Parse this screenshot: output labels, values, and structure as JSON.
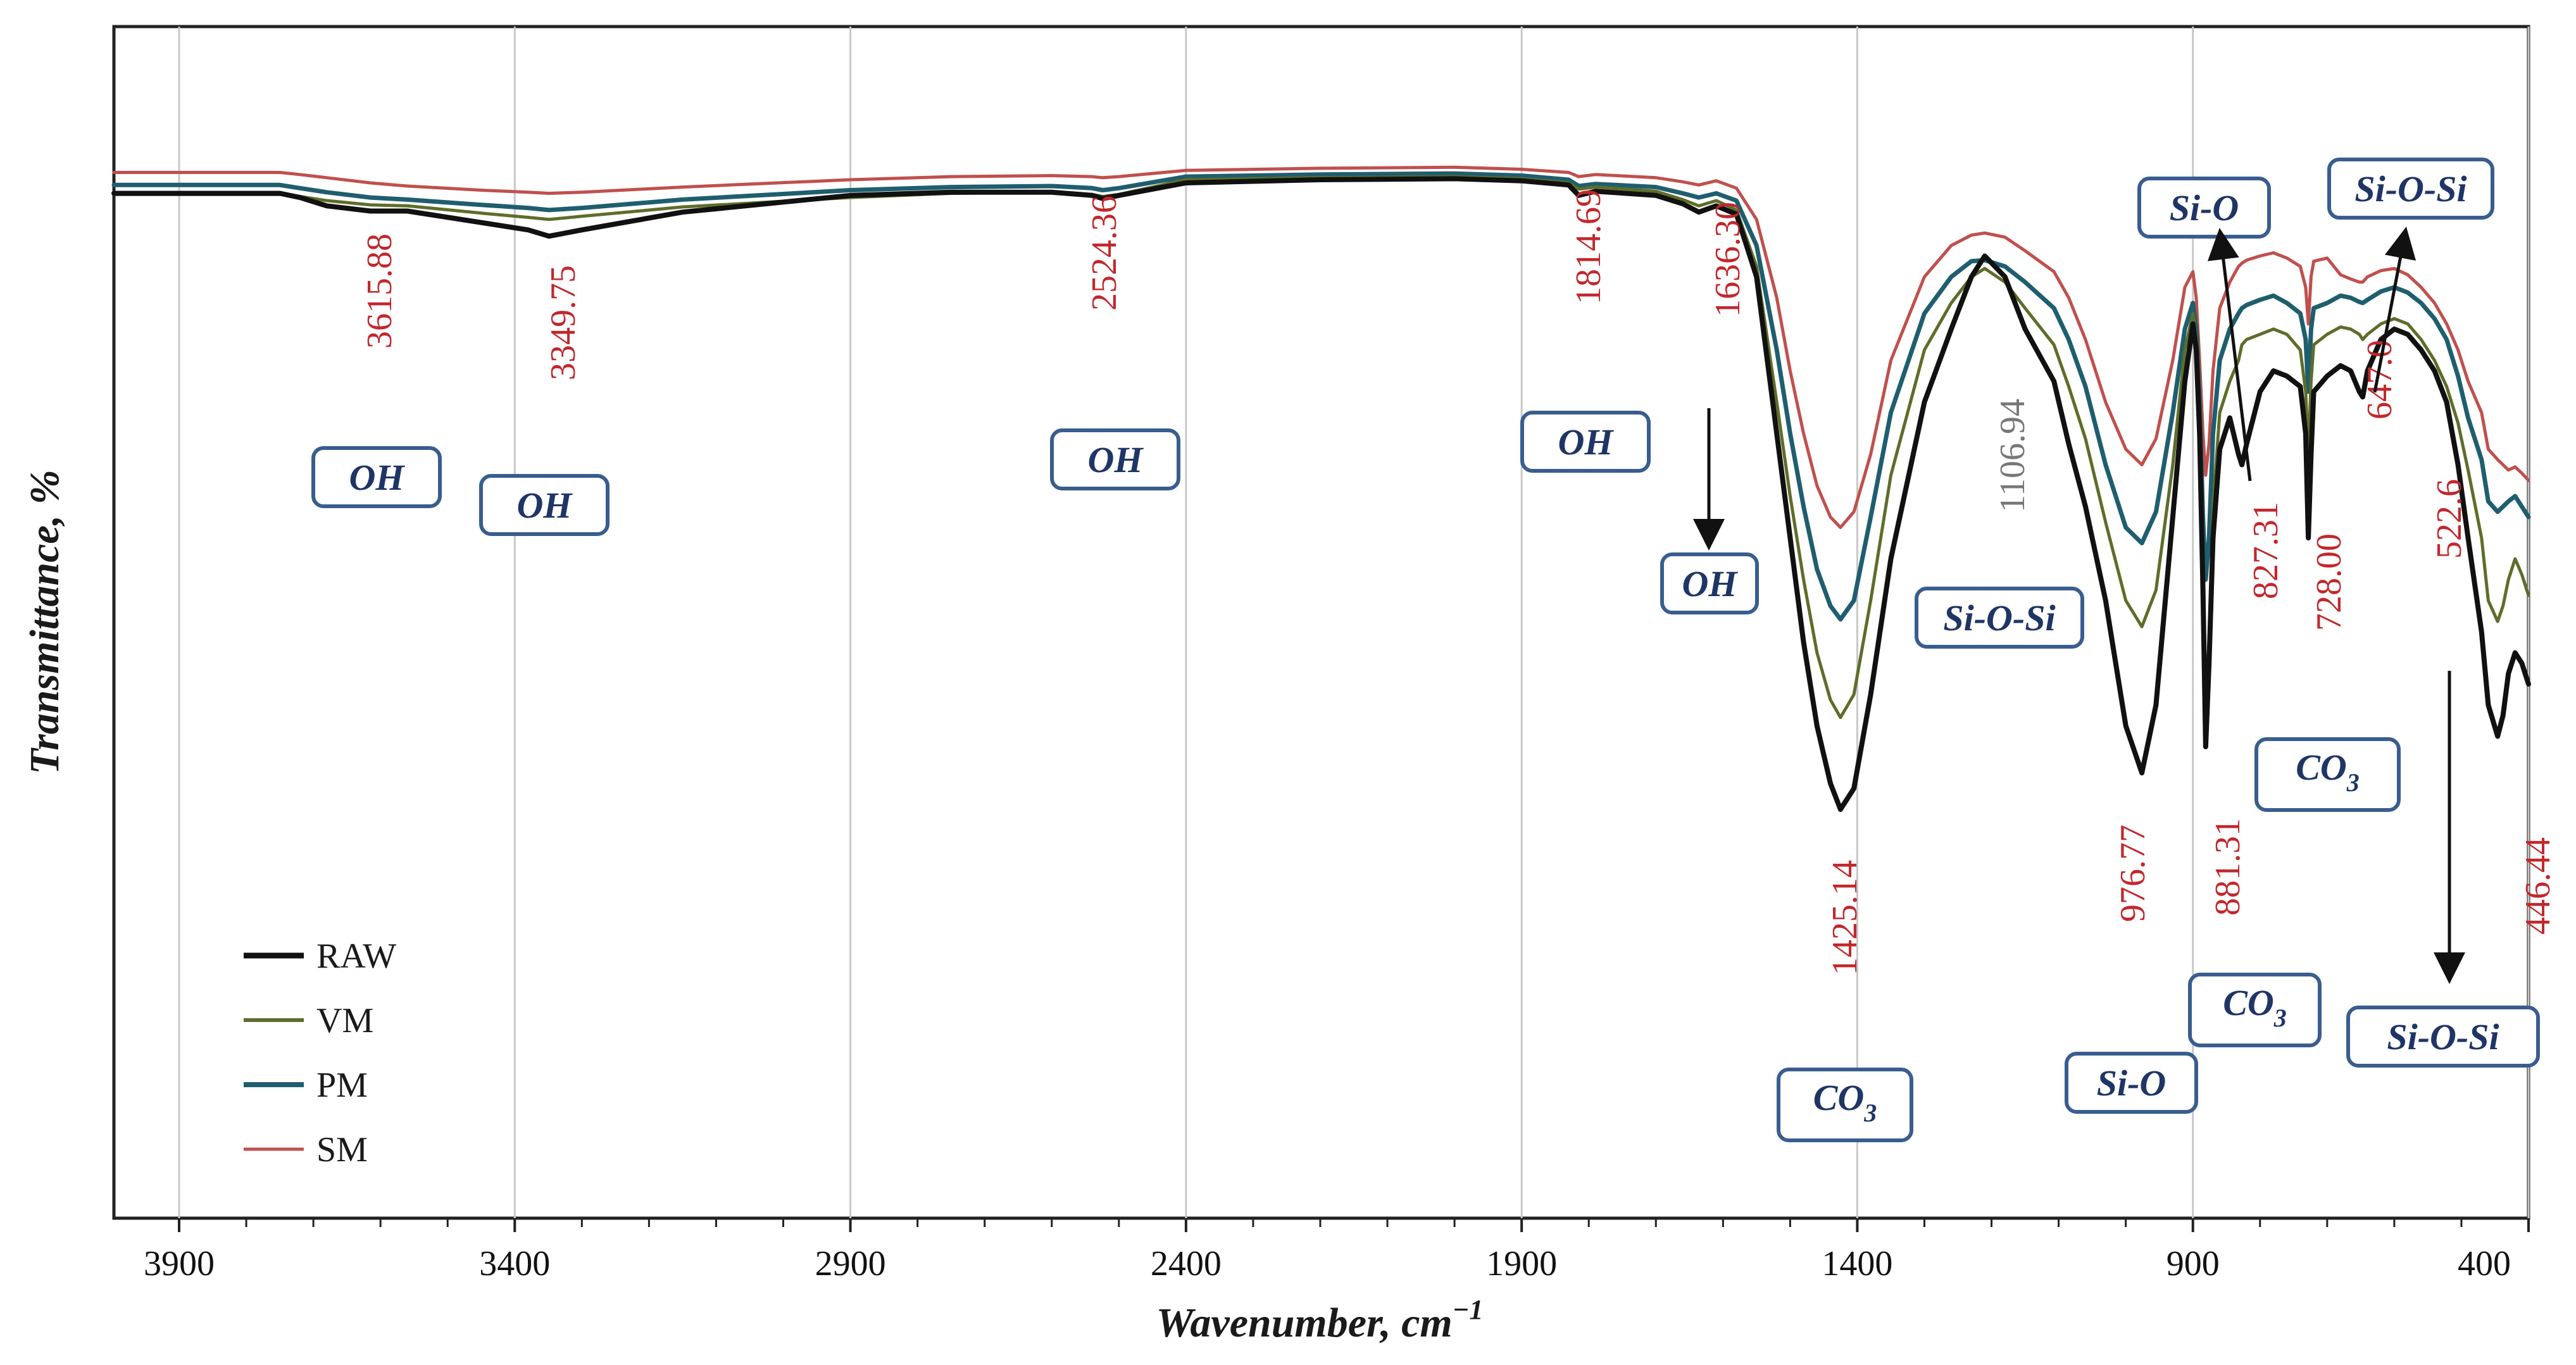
{
  "chart_data": {
    "type": "line",
    "title": "",
    "xlabel": "Wavenumber, cm",
    "xlabel_sup": "−1",
    "ylabel": "Transmittance, %",
    "xlim": [
      4000,
      400
    ],
    "x_reversed": true,
    "ylim": [
      0,
      100
    ],
    "grid": "vertical",
    "x_ticks": [
      3900,
      3400,
      2900,
      2400,
      1900,
      1400,
      900,
      400
    ],
    "x_tick_labels": [
      "3900",
      "3400",
      "2900",
      "2400",
      "1900",
      "1400",
      "900",
      "400"
    ],
    "legend": {
      "position": "bottom-left",
      "entries": [
        "RAW",
        "VM",
        "PM",
        "SM"
      ]
    },
    "series": [
      {
        "name": "RAW",
        "color": "#111111",
        "x": [
          4000,
          3750,
          3720,
          3680,
          3615,
          3560,
          3450,
          3380,
          3349,
          3300,
          3150,
          2900,
          2750,
          2600,
          2540,
          2524,
          2500,
          2400,
          2200,
          2000,
          1900,
          1830,
          1815,
          1790,
          1700,
          1660,
          1636,
          1610,
          1580,
          1550,
          1520,
          1500,
          1480,
          1460,
          1440,
          1425,
          1405,
          1380,
          1350,
          1300,
          1260,
          1230,
          1210,
          1180,
          1150,
          1107,
          1085,
          1060,
          1030,
          1000,
          976,
          955,
          930,
          912,
          900,
          895,
          890,
          885,
          881,
          876,
          870,
          860,
          845,
          832,
          827,
          820,
          800,
          780,
          760,
          740,
          732,
          728,
          724,
          720,
          700,
          680,
          665,
          652,
          647,
          640,
          620,
          600,
          580,
          560,
          540,
          522,
          505,
          490,
          470,
          460,
          446,
          438,
          430,
          420,
          410,
          400
        ],
        "y": [
          93.0,
          93.0,
          92.6,
          91.8,
          91.3,
          91.3,
          90.2,
          89.5,
          88.9,
          89.5,
          91.2,
          92.8,
          93.1,
          93.1,
          92.8,
          92.5,
          92.8,
          94.0,
          94.3,
          94.4,
          94.2,
          93.8,
          92.8,
          93.2,
          92.8,
          92.0,
          91.2,
          91.8,
          91.0,
          85.0,
          70.0,
          60.0,
          50.0,
          42.0,
          36.5,
          34.0,
          36.0,
          45.0,
          58.0,
          73.0,
          80.0,
          85.0,
          87.0,
          85.0,
          80.0,
          75.0,
          69.0,
          63.0,
          54.0,
          42.0,
          37.5,
          44.0,
          62.0,
          75.0,
          80.5,
          78.0,
          70.0,
          55.0,
          40.0,
          48.0,
          60.0,
          68.5,
          71.5,
          68.0,
          67.0,
          69.0,
          74.0,
          76.0,
          75.5,
          74.5,
          70.0,
          60.0,
          68.0,
          74.0,
          75.5,
          76.5,
          76.0,
          74.0,
          73.5,
          76.0,
          79.0,
          80.0,
          79.5,
          78.0,
          76.0,
          73.0,
          67.0,
          60.0,
          51.0,
          44.0,
          41.0,
          43.0,
          47.0,
          49.0,
          48.0,
          46.0
        ]
      },
      {
        "name": "VM",
        "color": "#5e6e2a",
        "x": [
          4000,
          3750,
          3720,
          3680,
          3615,
          3560,
          3450,
          3380,
          3349,
          3300,
          3150,
          2900,
          2750,
          2600,
          2540,
          2524,
          2500,
          2400,
          2200,
          2000,
          1900,
          1830,
          1815,
          1790,
          1700,
          1660,
          1636,
          1610,
          1580,
          1550,
          1520,
          1500,
          1480,
          1460,
          1440,
          1425,
          1405,
          1380,
          1350,
          1300,
          1260,
          1230,
          1210,
          1180,
          1150,
          1107,
          1085,
          1060,
          1030,
          1000,
          976,
          955,
          930,
          912,
          900,
          895,
          890,
          885,
          881,
          876,
          870,
          860,
          845,
          832,
          827,
          820,
          800,
          780,
          760,
          740,
          732,
          728,
          724,
          720,
          700,
          680,
          665,
          652,
          647,
          640,
          620,
          600,
          580,
          560,
          540,
          522,
          505,
          490,
          470,
          460,
          446,
          438,
          430,
          420,
          410,
          400
        ],
        "y": [
          92.9,
          92.9,
          92.7,
          92.3,
          91.9,
          91.8,
          91.1,
          90.7,
          90.5,
          90.8,
          91.7,
          92.6,
          93.0,
          93.1,
          92.9,
          92.7,
          92.9,
          94.3,
          94.5,
          94.6,
          94.4,
          94.0,
          93.4,
          93.6,
          93.2,
          92.4,
          91.8,
          92.3,
          91.4,
          86.0,
          73.0,
          64.0,
          56.0,
          49.0,
          44.5,
          42.8,
          45.0,
          54.0,
          66.0,
          78.0,
          82.5,
          85.0,
          85.8,
          84.5,
          82.0,
          78.5,
          74.5,
          69.5,
          61.5,
          54.0,
          51.5,
          55.0,
          67.0,
          78.0,
          81.5,
          79.0,
          71.0,
          57.0,
          44.0,
          50.0,
          63.0,
          72.0,
          75.0,
          77.0,
          78.5,
          79.0,
          79.5,
          80.0,
          79.5,
          78.0,
          74.0,
          68.0,
          75.0,
          78.5,
          79.5,
          80.2,
          80.0,
          79.5,
          79.0,
          79.5,
          80.5,
          81.0,
          80.5,
          79.0,
          77.0,
          74.5,
          71.0,
          66.5,
          60.0,
          54.0,
          52.0,
          53.5,
          56.0,
          58.0,
          56.5,
          54.5
        ]
      },
      {
        "name": "PM",
        "color": "#1f5e6e",
        "x": [
          4000,
          3750,
          3720,
          3680,
          3615,
          3560,
          3450,
          3380,
          3349,
          3300,
          3150,
          2900,
          2750,
          2600,
          2540,
          2524,
          2500,
          2400,
          2200,
          2000,
          1900,
          1830,
          1815,
          1790,
          1700,
          1660,
          1636,
          1610,
          1580,
          1550,
          1520,
          1500,
          1480,
          1460,
          1440,
          1425,
          1405,
          1380,
          1350,
          1300,
          1260,
          1230,
          1210,
          1180,
          1150,
          1107,
          1085,
          1060,
          1030,
          1000,
          976,
          955,
          930,
          912,
          900,
          895,
          890,
          885,
          881,
          876,
          870,
          860,
          845,
          832,
          827,
          820,
          800,
          780,
          760,
          740,
          732,
          728,
          724,
          720,
          700,
          680,
          665,
          652,
          647,
          640,
          620,
          600,
          580,
          560,
          540,
          522,
          505,
          490,
          470,
          460,
          446,
          438,
          430,
          420,
          410,
          400
        ],
        "y": [
          93.8,
          93.8,
          93.5,
          93.1,
          92.6,
          92.4,
          91.9,
          91.6,
          91.4,
          91.6,
          92.4,
          93.3,
          93.6,
          93.7,
          93.5,
          93.3,
          93.5,
          94.6,
          94.8,
          94.9,
          94.7,
          94.3,
          93.7,
          93.9,
          93.6,
          93.0,
          92.6,
          93.0,
          92.3,
          88.0,
          78.0,
          70.0,
          63.0,
          57.0,
          53.5,
          52.2,
          54.0,
          62.0,
          72.0,
          81.5,
          85.0,
          86.5,
          86.6,
          86.0,
          84.5,
          82.0,
          79.0,
          74.5,
          67.0,
          61.0,
          59.5,
          62.5,
          72.0,
          80.0,
          82.5,
          80.0,
          73.0,
          62.0,
          56.0,
          60.0,
          70.0,
          77.0,
          80.0,
          81.5,
          82.0,
          82.3,
          82.8,
          83.2,
          82.5,
          81.5,
          79.0,
          74.0,
          80.0,
          82.0,
          82.5,
          83.2,
          83.0,
          82.6,
          82.5,
          82.8,
          83.6,
          84.0,
          83.5,
          82.5,
          81.0,
          79.0,
          75.5,
          71.5,
          67.5,
          63.5,
          62.5,
          63.0,
          63.5,
          64.0,
          63.0,
          62.0
        ]
      },
      {
        "name": "SM",
        "color": "#c0504d",
        "x": [
          4000,
          3750,
          3720,
          3680,
          3615,
          3560,
          3450,
          3380,
          3349,
          3300,
          3150,
          2900,
          2750,
          2600,
          2540,
          2524,
          2500,
          2400,
          2200,
          2000,
          1900,
          1830,
          1815,
          1790,
          1700,
          1660,
          1636,
          1610,
          1580,
          1550,
          1520,
          1500,
          1480,
          1460,
          1440,
          1425,
          1405,
          1380,
          1350,
          1300,
          1260,
          1230,
          1210,
          1180,
          1150,
          1107,
          1085,
          1060,
          1030,
          1000,
          976,
          955,
          930,
          912,
          900,
          895,
          890,
          885,
          881,
          876,
          870,
          860,
          845,
          832,
          827,
          820,
          800,
          780,
          760,
          740,
          732,
          728,
          724,
          720,
          700,
          680,
          665,
          652,
          647,
          640,
          620,
          600,
          580,
          560,
          540,
          522,
          505,
          490,
          470,
          460,
          446,
          438,
          430,
          420,
          410,
          400
        ],
        "y": [
          95.0,
          95.0,
          94.8,
          94.5,
          94.0,
          93.7,
          93.3,
          93.1,
          93.0,
          93.1,
          93.6,
          94.3,
          94.6,
          94.7,
          94.6,
          94.5,
          94.6,
          95.2,
          95.4,
          95.5,
          95.3,
          95.0,
          94.6,
          94.8,
          94.5,
          94.1,
          93.8,
          94.2,
          93.5,
          90.5,
          83.0,
          76.0,
          70.0,
          65.0,
          62.0,
          61.0,
          62.5,
          68.0,
          77.0,
          85.0,
          88.0,
          89.0,
          89.2,
          88.8,
          87.5,
          85.5,
          83.0,
          79.0,
          73.0,
          68.5,
          67.0,
          69.5,
          77.0,
          84.0,
          85.5,
          83.0,
          77.0,
          70.0,
          66.0,
          69.0,
          76.0,
          82.0,
          84.5,
          86.0,
          86.3,
          86.6,
          87.0,
          87.3,
          86.8,
          86.0,
          84.0,
          80.5,
          85.0,
          86.5,
          86.8,
          85.2,
          84.8,
          84.5,
          84.5,
          85.0,
          85.6,
          85.8,
          85.2,
          84.0,
          82.5,
          80.5,
          78.0,
          75.0,
          72.0,
          68.5,
          67.5,
          67.0,
          66.5,
          66.8,
          66.2,
          65.5
        ]
      }
    ],
    "peak_labels": [
      {
        "text": "3615.88",
        "x": 3615.88,
        "color": "#c0282d"
      },
      {
        "text": "3349.75",
        "x": 3349.75,
        "color": "#c0282d"
      },
      {
        "text": "2524.36",
        "x": 2524.36,
        "color": "#c0282d"
      },
      {
        "text": "1814.69",
        "x": 1814.69,
        "color": "#c0282d"
      },
      {
        "text": "1636.30",
        "x": 1636.3,
        "color": "#c0282d"
      },
      {
        "text": "1425.14",
        "x": 1425.14,
        "color": "#c0282d"
      },
      {
        "text": "1106.94",
        "x": 1106.94,
        "color": "#777777"
      },
      {
        "text": "976.77",
        "x": 976.77,
        "color": "#c0282d"
      },
      {
        "text": "881.31",
        "x": 881.31,
        "color": "#c0282d"
      },
      {
        "text": "827.31",
        "x": 827.31,
        "color": "#c0282d"
      },
      {
        "text": "728.00",
        "x": 728.0,
        "color": "#c0282d"
      },
      {
        "text": "647.0",
        "x": 647.0,
        "color": "#c0282d"
      },
      {
        "text": "522.6",
        "x": 522.6,
        "color": "#c0282d"
      },
      {
        "text": "446.44",
        "x": 446.44,
        "color": "#c0282d"
      }
    ],
    "group_labels": [
      {
        "text": "OH",
        "near_x": 3615.88
      },
      {
        "text": "OH",
        "near_x": 3349.75
      },
      {
        "text": "OH",
        "near_x": 2524.36
      },
      {
        "text": "OH",
        "near_x": 1814.69
      },
      {
        "text": "OH",
        "near_x": 1636.3
      },
      {
        "text": "CO",
        "sub": "3",
        "near_x": 1425.14
      },
      {
        "text": "Si-O-Si",
        "near_x": 1106.94
      },
      {
        "text": "Si-O",
        "near_x": 976.77
      },
      {
        "text": "CO",
        "sub": "3",
        "near_x": 881.31
      },
      {
        "text": "Si-O",
        "near_x": 827.31
      },
      {
        "text": "CO",
        "sub": "3",
        "near_x": 728.0
      },
      {
        "text": "Si-O-Si",
        "near_x": 647.0
      },
      {
        "text": "Si-O-Si",
        "near_x": 522.6
      }
    ]
  }
}
